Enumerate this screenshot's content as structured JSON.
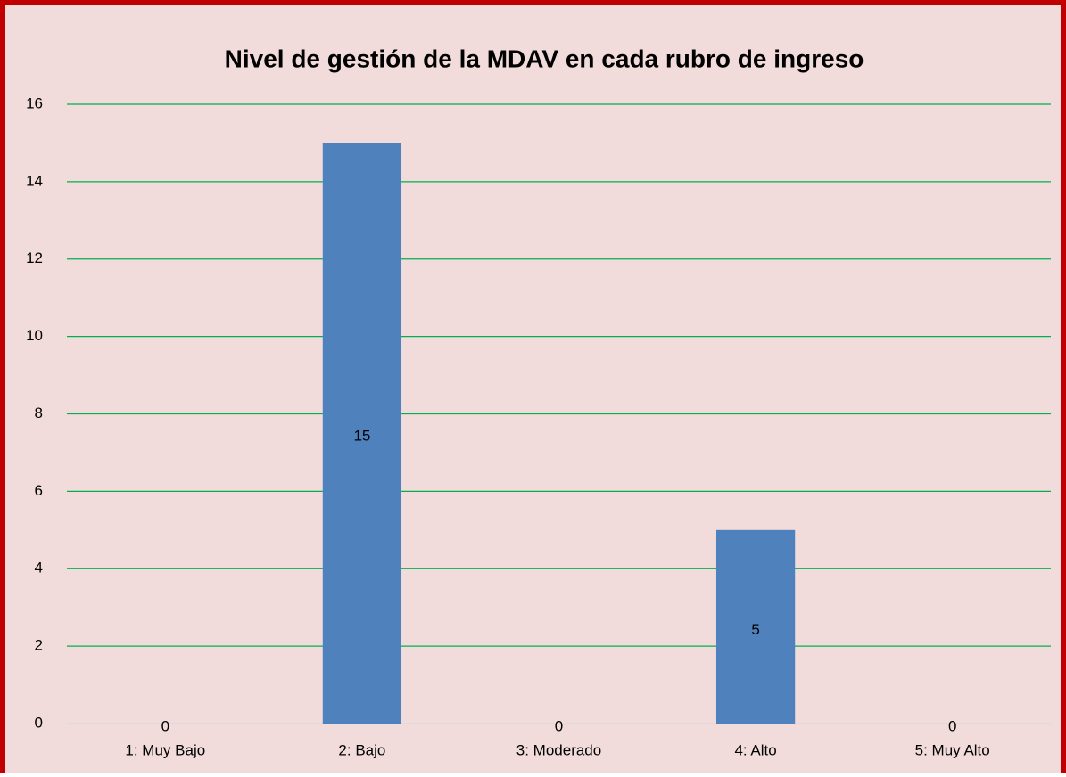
{
  "chart_data": {
    "type": "bar",
    "title": "Nivel de gestión de la MDAV en cada rubro de ingreso",
    "categories": [
      "1: Muy Bajo",
      "2: Bajo",
      "3: Moderado",
      "4: Alto",
      "5: Muy Alto"
    ],
    "values": [
      0,
      15,
      0,
      5,
      0
    ],
    "color": "#4f81bd",
    "ylim": [
      0,
      16
    ],
    "yticks": [
      0,
      2,
      4,
      6,
      8,
      10,
      12,
      14,
      16
    ],
    "grid": true,
    "grid_color": "#00b050"
  }
}
